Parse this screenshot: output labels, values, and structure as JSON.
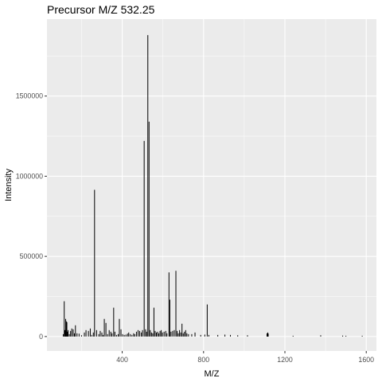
{
  "chart_data": {
    "type": "bar",
    "title": "Precursor M/Z 532.25",
    "xlabel": "M/Z",
    "ylabel": "Intensity",
    "xlim": [
      30,
      1650
    ],
    "ylim": [
      -90000,
      1980000
    ],
    "grid": true,
    "legend": "none",
    "background_color": "#ebebeb",
    "gridline_color": "#ffffff",
    "bar_color": "#000000",
    "x_major_ticks": [
      400,
      800,
      1200,
      1600
    ],
    "x_minor_ticks": [
      200,
      600,
      1000,
      1400
    ],
    "x_tick_labels": [
      "400",
      "800",
      "1200",
      "1600"
    ],
    "y_major_ticks": [
      0,
      500000,
      1000000,
      1500000
    ],
    "y_minor_ticks": [
      250000,
      750000,
      1250000,
      1750000
    ],
    "y_tick_labels": [
      "0",
      "500000",
      "1000000",
      "1500000"
    ],
    "x": [
      110,
      115,
      118,
      122,
      125,
      128,
      131,
      134,
      140,
      146,
      152,
      159,
      165,
      170,
      178,
      188,
      200,
      214,
      222,
      234,
      243,
      250,
      258,
      264,
      274,
      285,
      292,
      300,
      306,
      312,
      320,
      328,
      336,
      344,
      350,
      358,
      364,
      372,
      380,
      386,
      394,
      402,
      410,
      418,
      426,
      432,
      440,
      448,
      456,
      462,
      470,
      478,
      486,
      494,
      500,
      508,
      515,
      520,
      526,
      532,
      538,
      544,
      550,
      556,
      562,
      568,
      574,
      580,
      586,
      592,
      598,
      606,
      614,
      620,
      630,
      634,
      640,
      648,
      656,
      664,
      670,
      676,
      682,
      688,
      694,
      700,
      706,
      712,
      718,
      726,
      742,
      758,
      786,
      806,
      818,
      826,
      870,
      905,
      932,
      968,
      1016,
      1112,
      1114,
      1116,
      1118,
      1240,
      1376,
      1484,
      1500,
      1580
    ],
    "values": [
      15000,
      220000,
      40000,
      110000,
      95000,
      90000,
      30000,
      40000,
      15000,
      35000,
      50000,
      45000,
      20000,
      70000,
      20000,
      18000,
      8000,
      25000,
      40000,
      35000,
      50000,
      10000,
      25000,
      915000,
      40000,
      15000,
      35000,
      25000,
      10000,
      110000,
      85000,
      15000,
      40000,
      30000,
      20000,
      180000,
      30000,
      10000,
      15000,
      110000,
      45000,
      15000,
      10000,
      12000,
      18000,
      25000,
      15000,
      10000,
      20000,
      15000,
      30000,
      40000,
      35000,
      25000,
      40000,
      1220000,
      45000,
      30000,
      1880000,
      1340000,
      40000,
      25000,
      20000,
      180000,
      35000,
      25000,
      30000,
      20000,
      35000,
      40000,
      25000,
      30000,
      35000,
      20000,
      400000,
      230000,
      30000,
      35000,
      40000,
      410000,
      35000,
      20000,
      40000,
      25000,
      80000,
      20000,
      30000,
      40000,
      20000,
      15000,
      15000,
      25000,
      10000,
      12000,
      200000,
      10000,
      10000,
      12000,
      10000,
      8000,
      8000,
      20000,
      15000,
      25000,
      18000,
      5000,
      8000,
      6000,
      5000,
      5000
    ]
  }
}
